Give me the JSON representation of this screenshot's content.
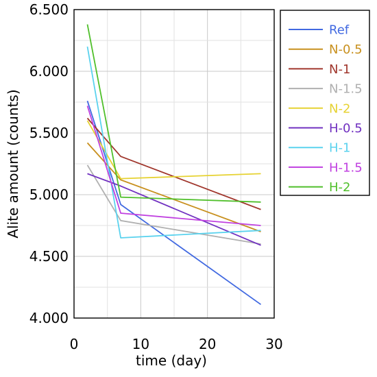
{
  "chart_data": {
    "type": "line",
    "title": "",
    "xlabel": "time (day)",
    "ylabel": "Alite amount (counts)",
    "xlim": [
      0,
      30
    ],
    "ylim": [
      4000,
      6500
    ],
    "xticks": [
      "0",
      "10",
      "20",
      "30"
    ],
    "xtick_values": [
      0,
      10,
      20,
      30
    ],
    "yticks": [
      "4.000",
      "4.500",
      "5.000",
      "5.500",
      "6.000",
      "6.500"
    ],
    "ytick_values": [
      4000,
      4500,
      5000,
      5500,
      6000,
      6500
    ],
    "grid": true,
    "legend_position": "right",
    "x": [
      2,
      7,
      28
    ],
    "series": [
      {
        "name": "Ref",
        "color": "#4169e1",
        "values": [
          5760,
          4920,
          4110
        ]
      },
      {
        "name": "N-0.5",
        "color": "#c8901e",
        "values": [
          5420,
          5120,
          4700
        ]
      },
      {
        "name": "N-1",
        "color": "#a0362c",
        "values": [
          5620,
          5310,
          4880
        ]
      },
      {
        "name": "N-1.5",
        "color": "#b0b0b0",
        "values": [
          5240,
          4790,
          4600
        ]
      },
      {
        "name": "N-2",
        "color": "#e6d232",
        "values": [
          5600,
          5130,
          5170
        ]
      },
      {
        "name": "H-0.5",
        "color": "#7030c0",
        "values": [
          5170,
          5070,
          4590
        ]
      },
      {
        "name": "H-1",
        "color": "#5ad2ee",
        "values": [
          6200,
          4650,
          4710
        ]
      },
      {
        "name": "H-1.5",
        "color": "#c040e0",
        "values": [
          5720,
          4850,
          4750
        ]
      },
      {
        "name": "H-2",
        "color": "#4fbf2a",
        "values": [
          6380,
          4980,
          4940
        ]
      }
    ]
  }
}
